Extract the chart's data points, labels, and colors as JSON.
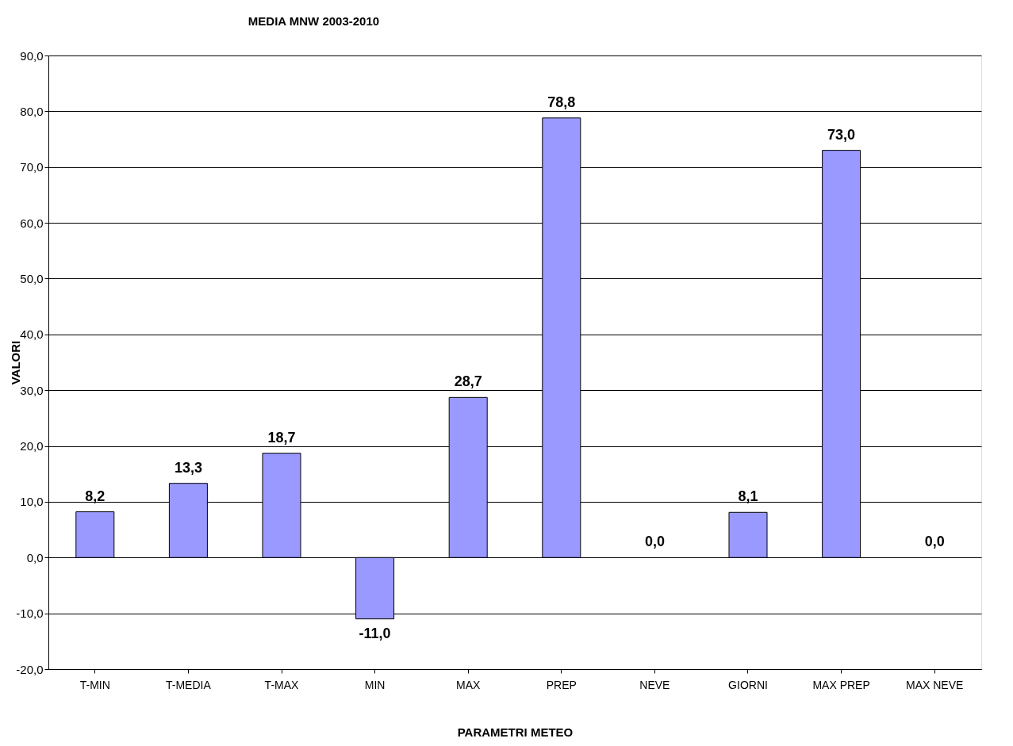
{
  "chart_data": {
    "type": "bar",
    "title": "MEDIA MNW 2003-2010",
    "xlabel": "PARAMETRI METEO",
    "ylabel": "VALORI",
    "categories": [
      "T-MIN",
      "T-MEDIA",
      "T-MAX",
      "MIN",
      "MAX",
      "PREP",
      "NEVE",
      "GIORNI",
      "MAX PREP",
      "MAX NEVE"
    ],
    "values": [
      8.2,
      13.3,
      18.7,
      -11.0,
      28.7,
      78.8,
      0.0,
      8.1,
      73.0,
      0.0
    ],
    "value_labels": [
      "8,2",
      "13,3",
      "18,7",
      "-11,0",
      "28,7",
      "78,8",
      "0,0",
      "8,1",
      "73,0",
      "0,0"
    ],
    "color": "#9999ff",
    "ylim": [
      -20,
      90
    ],
    "yticks": [
      {
        "value": -20,
        "label": "-20,0"
      },
      {
        "value": -10,
        "label": "-10,0"
      },
      {
        "value": 0,
        "label": "0,0"
      },
      {
        "value": 10,
        "label": "10,0"
      },
      {
        "value": 20,
        "label": "20,0"
      },
      {
        "value": 30,
        "label": "30,0"
      },
      {
        "value": 40,
        "label": "40,0"
      },
      {
        "value": 50,
        "label": "50,0"
      },
      {
        "value": 60,
        "label": "60,0"
      },
      {
        "value": 70,
        "label": "70,0"
      },
      {
        "value": 80,
        "label": "80,0"
      },
      {
        "value": 90,
        "label": "90,0"
      }
    ],
    "grid": "y"
  }
}
